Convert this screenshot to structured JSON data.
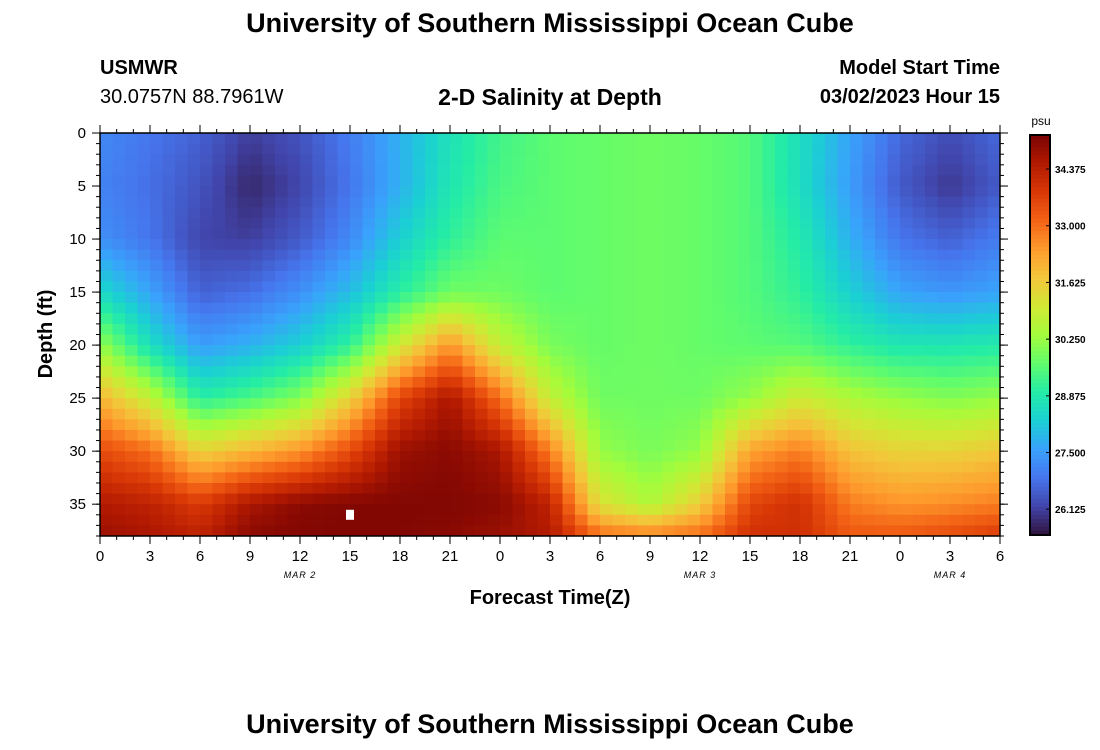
{
  "page": {
    "title": "University of Southern Mississippi Ocean Cube",
    "footer_title": "University of Southern Mississippi Ocean Cube",
    "station": "USMWR",
    "coords": "30.0757N  88.7961W",
    "plot_title": "2-D Salinity at Depth",
    "model_start_label": "Model Start Time",
    "model_start_value": "03/02/2023 Hour 15"
  },
  "colors": {
    "colormap": [
      "#30123b",
      "#4145ab",
      "#4675ed",
      "#39a2fc",
      "#1bcfd4",
      "#24eca6",
      "#61fc6c",
      "#a4fc3b",
      "#d1e834",
      "#f3c63a",
      "#fe9b2d",
      "#f36315",
      "#d93806",
      "#b11901",
      "#7a0403"
    ],
    "marker": "#ffffff"
  },
  "chart_data": {
    "type": "heatmap",
    "title": "2-D Salinity at Depth",
    "xlabel": "Forecast Time(Z)",
    "ylabel": "Depth (ft)",
    "colorbar_label": "psu",
    "x_ticks": [
      "0",
      "3",
      "6",
      "9",
      "12",
      "15",
      "18",
      "21",
      "0",
      "3",
      "6",
      "9",
      "12",
      "15",
      "18",
      "21",
      "0",
      "3",
      "6"
    ],
    "x_tick_hours": [
      0,
      3,
      6,
      9,
      12,
      15,
      18,
      21,
      24,
      27,
      30,
      33,
      36,
      39,
      42,
      45,
      48,
      51,
      54
    ],
    "date_labels": [
      {
        "label": "MAR 2",
        "hour": 12
      },
      {
        "label": "MAR 3",
        "hour": 36
      },
      {
        "label": "MAR 4",
        "hour": 51
      }
    ],
    "y_ticks": [
      0,
      5,
      10,
      15,
      20,
      25,
      30,
      35
    ],
    "xlim": [
      0,
      54
    ],
    "ylim": [
      0,
      38
    ],
    "color_range": [
      25.5,
      35.2
    ],
    "colorbar_ticks": [
      "34.375",
      "33.000",
      "31.625",
      "30.250",
      "28.875",
      "27.500",
      "26.125"
    ],
    "colorbar_values": [
      34.375,
      33.0,
      31.625,
      30.25,
      28.875,
      27.5,
      26.125
    ],
    "marker": {
      "hour": 15,
      "depth": 36
    },
    "depth_levels": [
      0,
      5,
      10,
      15,
      20,
      25,
      30,
      35,
      38
    ],
    "salinity_columns": [
      {
        "hour": 0,
        "values": [
          27.2,
          27.1,
          27.3,
          28.5,
          30.2,
          32.0,
          33.5,
          34.5,
          34.8
        ]
      },
      {
        "hour": 3,
        "values": [
          26.9,
          26.8,
          26.9,
          27.6,
          28.6,
          30.8,
          33.0,
          34.3,
          34.6
        ]
      },
      {
        "hour": 6,
        "values": [
          26.6,
          26.4,
          26.2,
          26.6,
          27.5,
          29.0,
          31.5,
          33.8,
          34.3
        ]
      },
      {
        "hour": 9,
        "values": [
          26.1,
          25.8,
          26.1,
          26.8,
          27.8,
          29.4,
          32.0,
          34.6,
          35.0
        ]
      },
      {
        "hour": 12,
        "values": [
          26.4,
          26.2,
          26.5,
          27.3,
          28.3,
          30.0,
          32.5,
          35.0,
          35.1
        ]
      },
      {
        "hour": 15,
        "values": [
          27.0,
          26.9,
          27.2,
          28.0,
          29.1,
          31.5,
          33.5,
          35.1,
          35.1
        ]
      },
      {
        "hour": 18,
        "values": [
          27.8,
          27.8,
          28.3,
          29.0,
          31.0,
          33.6,
          34.8,
          35.1,
          35.1
        ]
      },
      {
        "hour": 21,
        "values": [
          28.7,
          28.8,
          29.1,
          29.8,
          32.5,
          34.6,
          35.0,
          35.1,
          35.0
        ]
      },
      {
        "hour": 24,
        "values": [
          29.3,
          29.4,
          29.6,
          29.8,
          30.8,
          33.0,
          34.6,
          35.0,
          34.8
        ]
      },
      {
        "hour": 27,
        "values": [
          29.6,
          29.6,
          29.6,
          29.6,
          29.9,
          30.8,
          32.8,
          34.3,
          34.5
        ]
      },
      {
        "hour": 30,
        "values": [
          29.7,
          29.7,
          29.7,
          29.7,
          29.7,
          29.8,
          30.2,
          31.2,
          33.0
        ]
      },
      {
        "hour": 33,
        "values": [
          29.8,
          29.8,
          29.8,
          29.8,
          29.8,
          29.8,
          29.9,
          30.5,
          32.8
        ]
      },
      {
        "hour": 36,
        "values": [
          29.7,
          29.7,
          29.7,
          29.7,
          29.7,
          29.8,
          30.2,
          31.6,
          33.0
        ]
      },
      {
        "hour": 39,
        "values": [
          29.5,
          29.5,
          29.5,
          29.5,
          29.6,
          30.2,
          32.3,
          33.6,
          34.0
        ]
      },
      {
        "hour": 42,
        "values": [
          28.6,
          28.6,
          28.9,
          29.1,
          29.5,
          31.0,
          32.8,
          34.0,
          34.0
        ]
      },
      {
        "hour": 45,
        "values": [
          27.6,
          27.5,
          27.8,
          28.3,
          29.1,
          30.5,
          31.8,
          32.8,
          33.3
        ]
      },
      {
        "hour": 48,
        "values": [
          26.7,
          26.5,
          26.9,
          27.6,
          28.8,
          30.2,
          31.5,
          32.5,
          33.3
        ]
      },
      {
        "hour": 51,
        "values": [
          26.3,
          26.0,
          26.6,
          27.4,
          28.8,
          30.0,
          31.5,
          32.6,
          33.5
        ]
      },
      {
        "hour": 54,
        "values": [
          26.7,
          26.5,
          27.0,
          27.6,
          28.9,
          30.2,
          31.7,
          32.8,
          33.8
        ]
      }
    ]
  }
}
